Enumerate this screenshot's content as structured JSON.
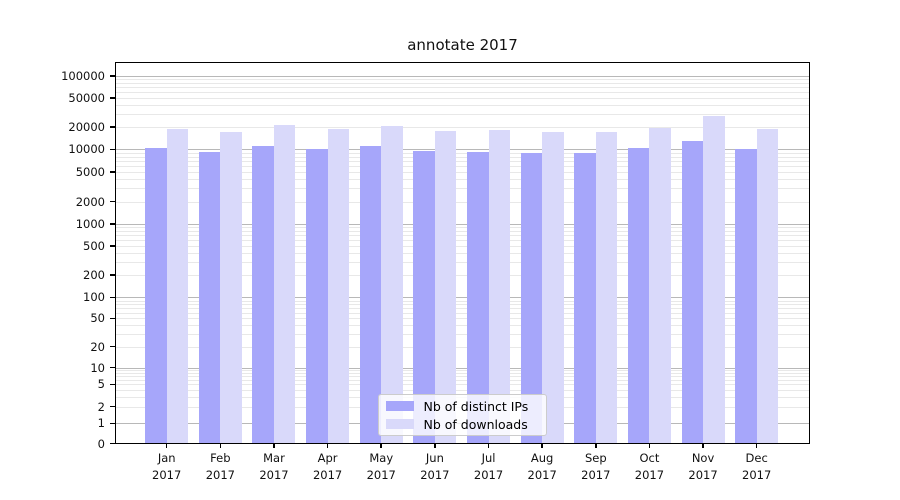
{
  "chart_data": {
    "type": "bar",
    "title": "annotate 2017",
    "categories": [
      "Jan",
      "Feb",
      "Mar",
      "Apr",
      "May",
      "Jun",
      "Jul",
      "Aug",
      "Sep",
      "Oct",
      "Nov",
      "Dec"
    ],
    "year_label": "2017",
    "series": [
      {
        "name": "Nb of distinct IPs",
        "color": "#a6a6fa",
        "values": [
          10500,
          9300,
          11000,
          10100,
          11000,
          9500,
          9200,
          9000,
          8900,
          10300,
          13100,
          10100
        ]
      },
      {
        "name": "Nb of downloads",
        "color": "#d9d9fa",
        "values": [
          19100,
          17400,
          21200,
          19100,
          21000,
          18000,
          18300,
          17300,
          17300,
          19700,
          28500,
          18900
        ]
      }
    ],
    "y_ticks": [
      0,
      1,
      2,
      5,
      10,
      20,
      50,
      100,
      200,
      500,
      1000,
      2000,
      5000,
      10000,
      20000,
      50000,
      100000
    ],
    "y_tick_labels": [
      "0",
      "1",
      "2",
      "5",
      "10",
      "20",
      "50",
      "100",
      "200",
      "500",
      "1000",
      "2000",
      "5000",
      "10000",
      "20000",
      "50000",
      "100000"
    ],
    "y_scale": "symlog",
    "ylim": [
      0,
      155000
    ],
    "grid": true,
    "legend_position": "lower center",
    "colors": {
      "bar_distinct_ips": "#a6a6fa",
      "bar_downloads": "#d9d9fa",
      "grid_major": "#b8b8b8",
      "grid_minor": "#e8e8e8",
      "legend_border": "#cccccc",
      "axis": "#000000"
    }
  }
}
